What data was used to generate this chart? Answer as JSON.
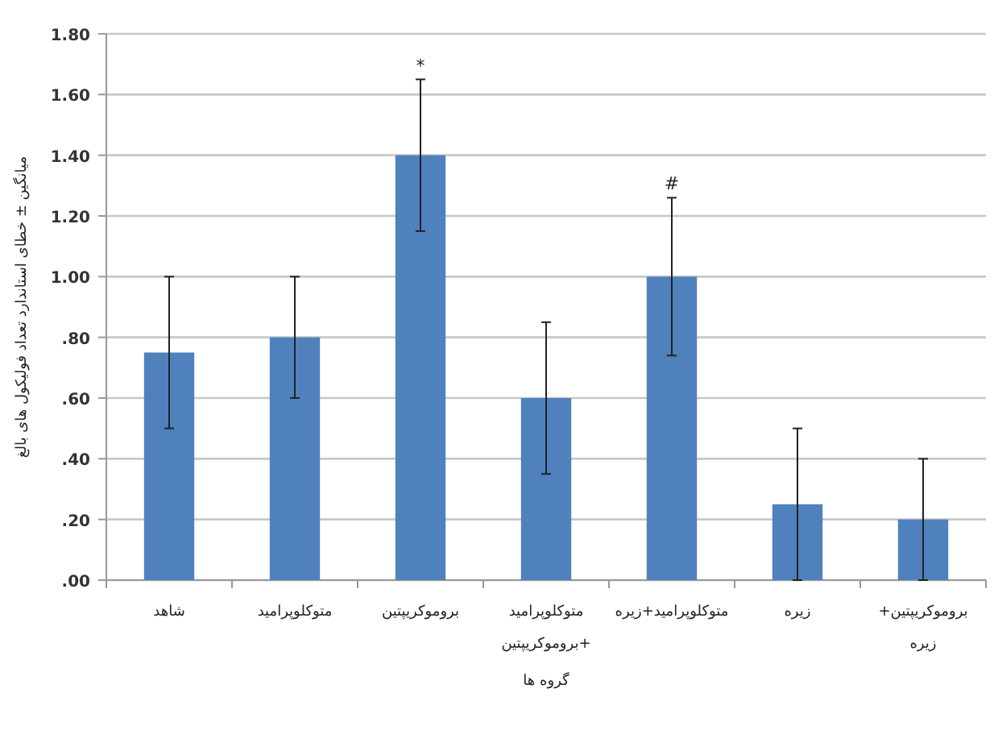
{
  "chart_data": {
    "type": "bar",
    "xlabel": "گروه ها",
    "ylabel": "میانگین ± خطای استاندارد تعداد فولیکول های بالغ",
    "categories": [
      "شاهد",
      "متوکلوپرامید",
      "بروموکریپتین",
      "متوکلوپرامید +بروموکریپتین",
      "متوکلوپرامید+زیره",
      "زیره",
      "بروموکریپتین+ زیره"
    ],
    "values": [
      0.75,
      0.8,
      1.4,
      0.6,
      1.0,
      0.25,
      0.2
    ],
    "errors": [
      0.25,
      0.2,
      0.25,
      0.25,
      0.26,
      0.25,
      0.2
    ],
    "color": "#4f81bd",
    "ylim": [
      0,
      1.8
    ],
    "yticks": [
      {
        "value": 0,
        "label": ".00"
      },
      {
        "value": 0.2,
        "label": ".20"
      },
      {
        "value": 0.4,
        "label": ".40"
      },
      {
        "value": 0.6,
        "label": ".60"
      },
      {
        "value": 0.8,
        "label": ".80"
      },
      {
        "value": 1,
        "label": "1.00"
      },
      {
        "value": 1.2,
        "label": "1.20"
      },
      {
        "value": 1.4,
        "label": "1.40"
      },
      {
        "value": 1.6,
        "label": "1.60"
      },
      {
        "value": 1.8,
        "label": "1.80"
      }
    ],
    "grid": "y",
    "annotations": [
      {
        "text": "*",
        "x": "بروموکریپتین",
        "y": 1.65
      },
      {
        "text": "#",
        "x": "متوکلوپرامید+زیره",
        "y": 1.26
      }
    ]
  }
}
